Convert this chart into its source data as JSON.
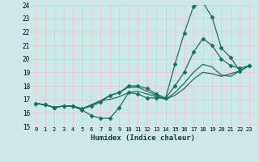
{
  "xlabel": "Humidex (Indice chaleur)",
  "bg_color": "#cce8e8",
  "grid_color": "#e8c8c8",
  "line_color": "#1a7060",
  "xlim": [
    -0.5,
    23.5
  ],
  "ylim": [
    15,
    24
  ],
  "yticks": [
    15,
    16,
    17,
    18,
    19,
    20,
    21,
    22,
    23,
    24
  ],
  "xticks": [
    0,
    1,
    2,
    3,
    4,
    5,
    6,
    7,
    8,
    9,
    10,
    11,
    12,
    13,
    14,
    15,
    16,
    17,
    18,
    19,
    20,
    21,
    22,
    23
  ],
  "lines": [
    {
      "x": [
        0,
        1,
        2,
        3,
        4,
        5,
        6,
        7,
        8,
        9,
        10,
        11,
        12,
        13,
        14,
        15,
        16,
        17,
        18,
        19,
        20,
        21,
        22,
        23
      ],
      "y": [
        16.7,
        16.6,
        16.4,
        16.5,
        16.5,
        16.2,
        15.8,
        15.6,
        15.6,
        16.4,
        17.5,
        17.4,
        17.1,
        17.1,
        17.1,
        19.6,
        21.9,
        23.9,
        24.2,
        23.1,
        20.8,
        20.1,
        19.1,
        19.5
      ],
      "marker": "D",
      "markersize": 2.5,
      "linewidth": 0.9
    },
    {
      "x": [
        0,
        1,
        2,
        3,
        4,
        5,
        6,
        7,
        8,
        9,
        10,
        11,
        12,
        13,
        14,
        15,
        16,
        17,
        18,
        19,
        20,
        21,
        22,
        23
      ],
      "y": [
        16.7,
        16.6,
        16.4,
        16.5,
        16.5,
        16.3,
        16.5,
        16.8,
        17.3,
        17.5,
        18.0,
        18.0,
        17.8,
        17.4,
        17.1,
        18.0,
        19.0,
        20.5,
        21.5,
        21.0,
        20.0,
        19.5,
        19.3,
        19.5
      ],
      "marker": "D",
      "markersize": 2.5,
      "linewidth": 0.9
    },
    {
      "x": [
        0,
        1,
        2,
        3,
        4,
        5,
        6,
        7,
        8,
        9,
        10,
        11,
        12,
        13,
        14,
        15,
        16,
        17,
        18,
        19,
        20,
        21,
        22,
        23
      ],
      "y": [
        16.7,
        16.6,
        16.4,
        16.5,
        16.5,
        16.3,
        16.6,
        16.9,
        17.3,
        17.5,
        17.9,
        17.9,
        17.6,
        17.3,
        17.0,
        17.5,
        18.2,
        19.0,
        19.6,
        19.4,
        18.8,
        18.7,
        19.1,
        19.5
      ],
      "marker": null,
      "markersize": 0,
      "linewidth": 0.9
    },
    {
      "x": [
        0,
        1,
        2,
        3,
        4,
        5,
        6,
        7,
        8,
        9,
        10,
        11,
        12,
        13,
        14,
        15,
        16,
        17,
        18,
        19,
        20,
        21,
        22,
        23
      ],
      "y": [
        16.7,
        16.6,
        16.4,
        16.5,
        16.5,
        16.3,
        16.6,
        16.9,
        17.0,
        17.2,
        17.5,
        17.6,
        17.4,
        17.2,
        17.0,
        17.3,
        17.8,
        18.5,
        19.0,
        18.9,
        18.7,
        18.9,
        19.1,
        19.5
      ],
      "marker": null,
      "markersize": 0,
      "linewidth": 0.9
    }
  ]
}
